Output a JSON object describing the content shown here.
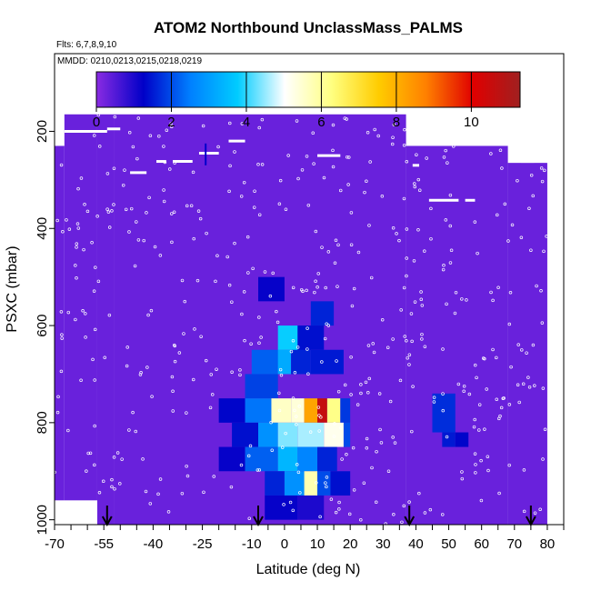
{
  "chart_data": {
    "type": "heatmap",
    "title": "ATOM2 Northbound UnclassMass_PALMS",
    "subtitle": "Flts: 6,7,8,9,10",
    "annotation": "MMDD: 0210,0213,0215,0218,0219",
    "xlabel": "Latitude (deg N)",
    "ylabel": "PSXC (mbar)",
    "xlim": [
      -70,
      85
    ],
    "ylim": [
      1010,
      40
    ],
    "x_ticks": [
      "-70",
      "-55",
      "-40",
      "-25",
      "-10",
      "0",
      "10",
      "20",
      "30",
      "40",
      "50",
      "60",
      "70",
      "80"
    ],
    "x_tick_values": [
      -70,
      -55,
      -40,
      -25,
      -10,
      0,
      10,
      20,
      30,
      40,
      50,
      60,
      70,
      80
    ],
    "x_minor_ticks": [
      -65,
      -60,
      -50,
      -45,
      -35,
      -30,
      -20,
      -15,
      -5,
      5,
      15,
      25,
      35,
      45,
      55,
      65,
      75,
      85
    ],
    "y_ticks": [
      "200",
      "400",
      "600",
      "800",
      "1000"
    ],
    "y_tick_values": [
      200,
      400,
      600,
      800,
      1000
    ],
    "colorbar": {
      "range": [
        0,
        11.3
      ],
      "ticks": [
        "0",
        "2",
        "4",
        "6",
        "8",
        "10"
      ],
      "tick_values": [
        0,
        2,
        4,
        6,
        8,
        10
      ],
      "colors": [
        "#8a2be2",
        "#0000c8",
        "#0080ff",
        "#00ccff",
        "#ffffff",
        "#ffff80",
        "#ffcc00",
        "#ff8000",
        "#e00000",
        "#a02020"
      ]
    },
    "background_value": 0.3,
    "coverage": [
      {
        "lat": [
          -70,
          -67
        ],
        "p": [
          230,
          960
        ]
      },
      {
        "lat": [
          -67,
          -57
        ],
        "p": [
          165,
          960
        ]
      },
      {
        "lat": [
          -57,
          -52
        ],
        "p": [
          165,
          1010
        ]
      },
      {
        "lat": [
          -52,
          37
        ],
        "p": [
          165,
          1010
        ]
      },
      {
        "lat": [
          37,
          68
        ],
        "p": [
          230,
          1010
        ]
      },
      {
        "lat": [
          68,
          80
        ],
        "p": [
          265,
          1010
        ]
      }
    ],
    "cells": [
      {
        "lat": [
          -12,
          -2
        ],
        "p": [
          700,
          750
        ],
        "v": 1.9
      },
      {
        "lat": [
          -10,
          0
        ],
        "p": [
          650,
          700
        ],
        "v": 2.2
      },
      {
        "lat": [
          -2,
          2
        ],
        "p": [
          650,
          700
        ],
        "v": 3.2
      },
      {
        "lat": [
          2,
          8
        ],
        "p": [
          600,
          700
        ],
        "v": 1.6
      },
      {
        "lat": [
          8,
          18
        ],
        "p": [
          650,
          700
        ],
        "v": 1.5
      },
      {
        "lat": [
          -2,
          4
        ],
        "p": [
          600,
          650
        ],
        "v": 3.8
      },
      {
        "lat": [
          4,
          12
        ],
        "p": [
          600,
          650
        ],
        "v": 1.4
      },
      {
        "lat": [
          8,
          15
        ],
        "p": [
          550,
          600
        ],
        "v": 1.6
      },
      {
        "lat": [
          -8,
          0
        ],
        "p": [
          500,
          550
        ],
        "v": 1.2
      },
      {
        "lat": [
          -20,
          -12
        ],
        "p": [
          750,
          800
        ],
        "v": 1.3
      },
      {
        "lat": [
          -12,
          -4
        ],
        "p": [
          750,
          800
        ],
        "v": 2.4
      },
      {
        "lat": [
          -4,
          2
        ],
        "p": [
          750,
          800
        ],
        "v": 5.6
      },
      {
        "lat": [
          2,
          6
        ],
        "p": [
          750,
          800
        ],
        "v": 5.4
      },
      {
        "lat": [
          6,
          10
        ],
        "p": [
          750,
          800
        ],
        "v": 8.2
      },
      {
        "lat": [
          10,
          13
        ],
        "p": [
          750,
          800
        ],
        "v": 10.6
      },
      {
        "lat": [
          13,
          17
        ],
        "p": [
          750,
          800
        ],
        "v": 6.2
      },
      {
        "lat": [
          17,
          20
        ],
        "p": [
          750,
          800
        ],
        "v": 1.8
      },
      {
        "lat": [
          -16,
          -8
        ],
        "p": [
          800,
          850
        ],
        "v": 1.4
      },
      {
        "lat": [
          -8,
          -2
        ],
        "p": [
          800,
          850
        ],
        "v": 2.8
      },
      {
        "lat": [
          -2,
          4
        ],
        "p": [
          800,
          850
        ],
        "v": 4.4
      },
      {
        "lat": [
          4,
          12
        ],
        "p": [
          800,
          850
        ],
        "v": 4.6
      },
      {
        "lat": [
          12,
          18
        ],
        "p": [
          800,
          850
        ],
        "v": 5.2
      },
      {
        "lat": [
          18,
          20
        ],
        "p": [
          800,
          850
        ],
        "v": 2.0
      },
      {
        "lat": [
          -20,
          -12
        ],
        "p": [
          850,
          900
        ],
        "v": 1.2
      },
      {
        "lat": [
          -12,
          -2
        ],
        "p": [
          850,
          900
        ],
        "v": 2.2
      },
      {
        "lat": [
          -2,
          4
        ],
        "p": [
          850,
          900
        ],
        "v": 3.4
      },
      {
        "lat": [
          4,
          10
        ],
        "p": [
          850,
          900
        ],
        "v": 2.6
      },
      {
        "lat": [
          10,
          16
        ],
        "p": [
          850,
          900
        ],
        "v": 1.6
      },
      {
        "lat": [
          -6,
          0
        ],
        "p": [
          900,
          950
        ],
        "v": 1.6
      },
      {
        "lat": [
          0,
          6
        ],
        "p": [
          900,
          950
        ],
        "v": 2.8
      },
      {
        "lat": [
          6,
          10
        ],
        "p": [
          900,
          950
        ],
        "v": 5.8
      },
      {
        "lat": [
          10,
          14
        ],
        "p": [
          900,
          950
        ],
        "v": 2.0
      },
      {
        "lat": [
          14,
          20
        ],
        "p": [
          900,
          950
        ],
        "v": 1.4
      },
      {
        "lat": [
          -6,
          4
        ],
        "p": [
          950,
          1000
        ],
        "v": 1.2
      },
      {
        "lat": [
          4,
          12
        ],
        "p": [
          950,
          1000
        ],
        "v": 1.0
      },
      {
        "lat": [
          45,
          52
        ],
        "p": [
          740,
          820
        ],
        "v": 1.7
      },
      {
        "lat": [
          48,
          52
        ],
        "p": [
          820,
          850
        ],
        "v": 1.5
      },
      {
        "lat": [
          52,
          56
        ],
        "p": [
          820,
          850
        ],
        "v": 1.3
      }
    ],
    "flight_segments": [
      {
        "lat": [
          -67,
          -54
        ],
        "p": 200
      },
      {
        "lat": [
          -54,
          -50
        ],
        "p": 195
      },
      {
        "lat": [
          -47,
          -42
        ],
        "p": 285
      },
      {
        "lat": [
          -39,
          -36
        ],
        "p": 262
      },
      {
        "lat": [
          -34,
          -28
        ],
        "p": 262
      },
      {
        "lat": [
          -26,
          -20
        ],
        "p": 245
      },
      {
        "lat": [
          -17,
          -12
        ],
        "p": 220
      },
      {
        "lat": [
          10,
          17
        ],
        "p": 250
      },
      {
        "lat": [
          39,
          41
        ],
        "p": 270
      },
      {
        "lat": [
          44,
          53
        ],
        "p": 342
      },
      {
        "lat": [
          55,
          58
        ],
        "p": 342
      },
      {
        "lat": [
          72,
          76
        ],
        "p": 262
      }
    ],
    "markers": [
      {
        "lat": -24,
        "p": [
          225,
          270
        ]
      }
    ],
    "arrows": [
      -54,
      -8,
      38,
      75
    ]
  }
}
